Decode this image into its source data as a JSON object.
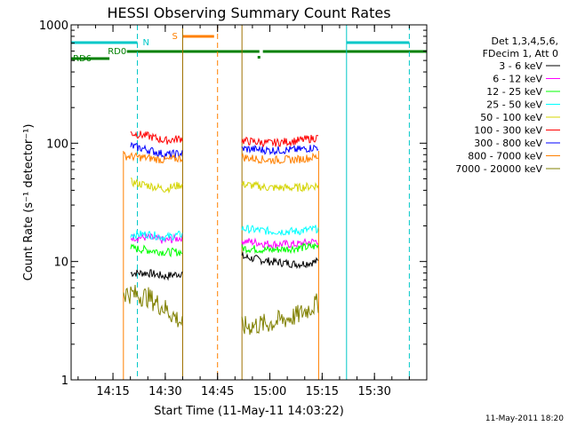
{
  "chart_data": {
    "type": "line",
    "title": "HESSI Observing Summary Count Rates",
    "xlabel": "Start Time (11-May-11 14:03:22)",
    "ylabel": "Count Rate (s⁻¹ detector⁻¹)",
    "y_scale": "log",
    "ylim": [
      1,
      1000
    ],
    "xlim": [
      "14:03",
      "15:45"
    ],
    "x_ticks": [
      "14:15",
      "14:30",
      "14:45",
      "15:00",
      "15:15",
      "15:30"
    ],
    "y_ticks": [
      "1",
      "10",
      "100",
      "1000"
    ],
    "grid": false,
    "legend_position": "right",
    "legend_header": [
      "Det 1,3,4,5,6,",
      "FDecim 1, Att 0"
    ],
    "footer_timestamp": "11-May-2011 18:20",
    "colors": {
      "3-6": "#000000",
      "6-12": "#ff00ff",
      "12-25": "#00ff00",
      "25-50": "#00ffff",
      "50-100": "#d4d400",
      "100-300": "#ff0000",
      "300-800": "#0000ff",
      "800-7000": "#ff8000",
      "7000-20000": "#808000",
      "night": "#00c8c8",
      "saa": "#ff8000",
      "rd": "#008000"
    },
    "series": [
      {
        "name": "3 - 6 keV",
        "segments": [
          {
            "x": [
              "14:20",
              "14:25",
              "14:30",
              "14:35"
            ],
            "y": [
              8,
              8,
              7.5,
              8
            ]
          },
          {
            "x": [
              "14:52",
              "15:00",
              "15:08",
              "15:14"
            ],
            "y": [
              11,
              10,
              9.5,
              10
            ]
          }
        ]
      },
      {
        "name": "6 - 12 keV",
        "segments": [
          {
            "x": [
              "14:20",
              "14:25",
              "14:30",
              "14:35"
            ],
            "y": [
              16,
              16,
              15,
              16
            ]
          },
          {
            "x": [
              "14:52",
              "15:00",
              "15:08",
              "15:14"
            ],
            "y": [
              15,
              14,
              14,
              15
            ]
          }
        ]
      },
      {
        "name": "12 - 25 keV",
        "segments": [
          {
            "x": [
              "14:20",
              "14:25",
              "14:30",
              "14:35"
            ],
            "y": [
              13,
              12.5,
              12,
              12
            ]
          },
          {
            "x": [
              "14:52",
              "15:00",
              "15:08",
              "15:14"
            ],
            "y": [
              13,
              12.5,
              13,
              13.5
            ]
          }
        ]
      },
      {
        "name": "25 - 50 keV",
        "segments": [
          {
            "x": [
              "14:20",
              "14:25",
              "14:30",
              "14:35"
            ],
            "y": [
              17,
              17,
              16,
              17
            ]
          },
          {
            "x": [
              "14:52",
              "15:00",
              "15:08",
              "15:14"
            ],
            "y": [
              19,
              18,
              18,
              19
            ]
          }
        ]
      },
      {
        "name": "50 - 100 keV",
        "segments": [
          {
            "x": [
              "14:20",
              "14:25",
              "14:30",
              "14:35"
            ],
            "y": [
              47,
              44,
              41,
              45
            ]
          },
          {
            "x": [
              "14:52",
              "15:00",
              "15:08",
              "15:14"
            ],
            "y": [
              45,
              42,
              42,
              44
            ]
          }
        ]
      },
      {
        "name": "100 - 300 keV",
        "segments": [
          {
            "x": [
              "14:20",
              "14:25",
              "14:30",
              "14:35"
            ],
            "y": [
              122,
              115,
              105,
              110
            ]
          },
          {
            "x": [
              "14:52",
              "15:00",
              "15:08",
              "15:14"
            ],
            "y": [
              105,
              100,
              105,
              112
            ]
          }
        ]
      },
      {
        "name": "300 - 800 keV",
        "segments": [
          {
            "x": [
              "14:20",
              "14:25",
              "14:30",
              "14:35"
            ],
            "y": [
              95,
              88,
              80,
              82
            ]
          },
          {
            "x": [
              "14:52",
              "15:00",
              "15:08",
              "15:14"
            ],
            "y": [
              90,
              87,
              88,
              93
            ]
          }
        ]
      },
      {
        "name": "800 - 7000 keV",
        "segments": [
          {
            "x": [
              "14:18",
              "14:25",
              "14:30",
              "14:35"
            ],
            "y": [
              78,
              75,
              72,
              75
            ]
          },
          {
            "x": [
              "14:52",
              "15:00",
              "15:08",
              "15:14"
            ],
            "y": [
              76,
              72,
              73,
              77
            ]
          }
        ]
      },
      {
        "name": "7000 - 20000 keV",
        "segments": [
          {
            "x": [
              "14:18",
              "14:25",
              "14:30",
              "14:35"
            ],
            "y": [
              5.5,
              5,
              4,
              3
            ]
          },
          {
            "x": [
              "14:52",
              "15:00",
              "15:08",
              "15:14"
            ],
            "y": [
              2.8,
              3,
              3.5,
              4.5
            ]
          }
        ]
      }
    ],
    "flags": {
      "night_label": "N",
      "saa_label": "S",
      "rd0_label": "RD0",
      "rd6_label": "RD6",
      "night_bars": [
        [
          "14:03",
          "14:22"
        ],
        [
          "15:22",
          "15:40"
        ]
      ],
      "saa_bar": [
        "14:35",
        "14:44"
      ],
      "rd0_bars": [
        [
          "14:19",
          "14:57"
        ],
        [
          "14:58",
          "15:45"
        ]
      ],
      "rd6_bar": [
        "14:03",
        "14:14"
      ],
      "night_lines_solid": [
        "14:03",
        "15:22"
      ],
      "night_lines_dashed": [
        "14:22",
        "15:40"
      ],
      "saa_lines_solid": [
        "14:35",
        "14:52"
      ],
      "saa_lines_dashed": [
        "14:45"
      ],
      "data_edges": [
        "14:18",
        "15:14"
      ]
    }
  }
}
